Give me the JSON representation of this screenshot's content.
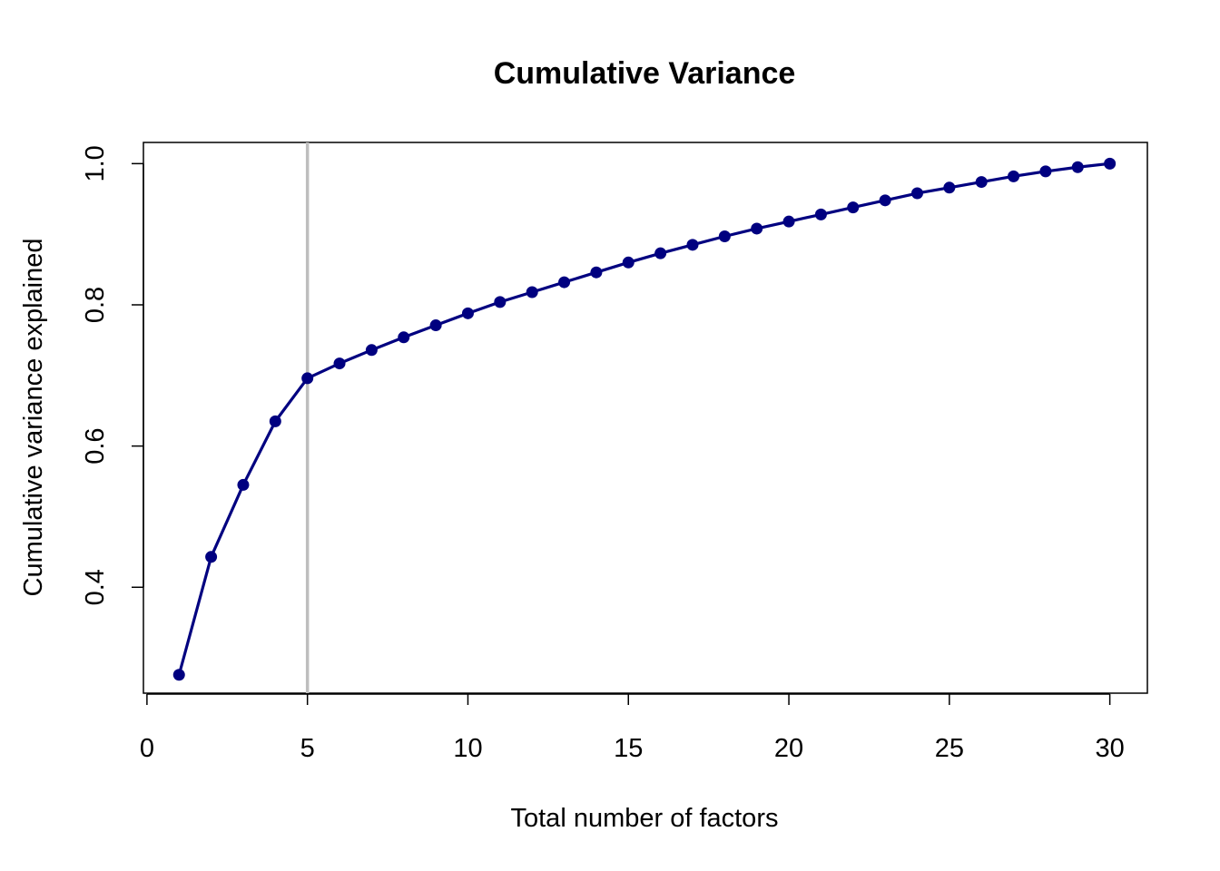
{
  "chart_data": {
    "type": "line",
    "title": "Cumulative Variance",
    "xlabel": "Total number of factors",
    "ylabel": "Cumulative variance explained",
    "xlim": [
      0,
      30
    ],
    "ylim": [
      0.25,
      1.03
    ],
    "xticks": [
      0,
      5,
      10,
      15,
      20,
      25,
      30
    ],
    "xtick_labels": [
      "0",
      "5",
      "10",
      "15",
      "20",
      "25",
      "30"
    ],
    "yticks": [
      0.4,
      0.6,
      0.8,
      1.0
    ],
    "ytick_labels": [
      "0.4",
      "0.6",
      "0.8",
      "1.0"
    ],
    "reference_line": {
      "x": 5,
      "color": "#bebebe"
    },
    "grid": false,
    "series": [
      {
        "color": "#000080",
        "x": [
          1,
          2,
          3,
          4,
          5,
          6,
          7,
          8,
          9,
          10,
          11,
          12,
          13,
          14,
          15,
          16,
          17,
          18,
          19,
          20,
          21,
          22,
          23,
          24,
          25,
          26,
          27,
          28,
          29,
          30
        ],
        "y": [
          0.276,
          0.443,
          0.545,
          0.635,
          0.696,
          0.717,
          0.736,
          0.754,
          0.771,
          0.788,
          0.804,
          0.818,
          0.832,
          0.846,
          0.86,
          0.873,
          0.885,
          0.897,
          0.908,
          0.918,
          0.928,
          0.938,
          0.948,
          0.958,
          0.966,
          0.974,
          0.982,
          0.989,
          0.995,
          1.0
        ]
      }
    ]
  }
}
